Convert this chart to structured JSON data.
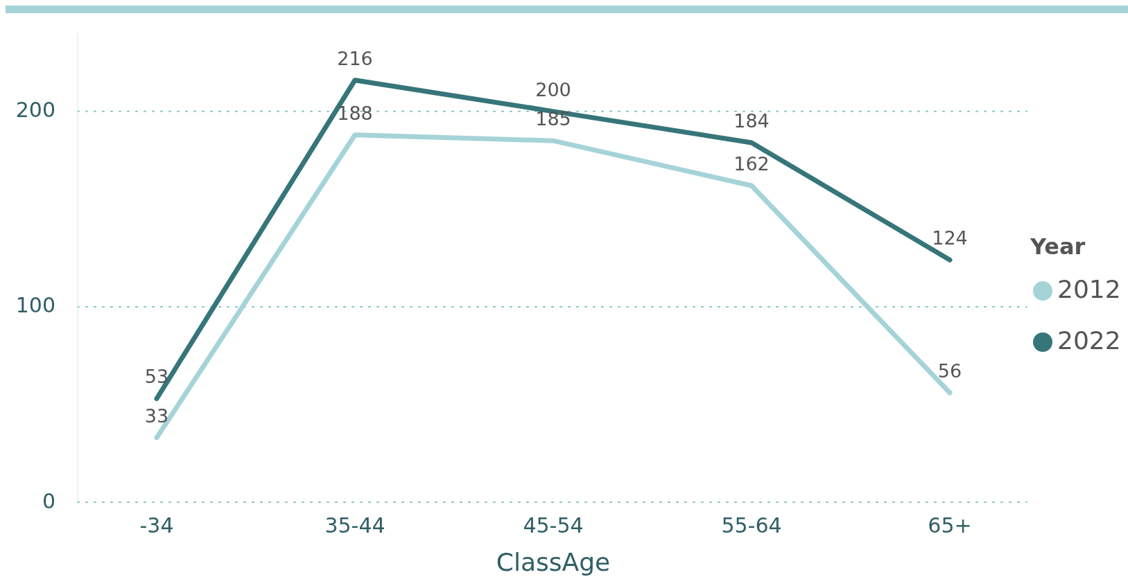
{
  "chart_data": {
    "type": "line",
    "xlabel": "ClassAge",
    "legend_title": "Year",
    "categories": [
      "-34",
      "35-44",
      "45-54",
      "55-64",
      "65+"
    ],
    "series": [
      {
        "name": "2012",
        "color": "#a5d3d8",
        "values": [
          33,
          188,
          185,
          162,
          56
        ]
      },
      {
        "name": "2022",
        "color": "#367579",
        "values": [
          53,
          216,
          200,
          184,
          124
        ]
      }
    ],
    "ylim": [
      0,
      240
    ],
    "yticks": [
      0,
      100,
      200
    ],
    "grid": "y",
    "legend": "right",
    "data_labels": true,
    "marker": "none",
    "line_style": "solid"
  }
}
